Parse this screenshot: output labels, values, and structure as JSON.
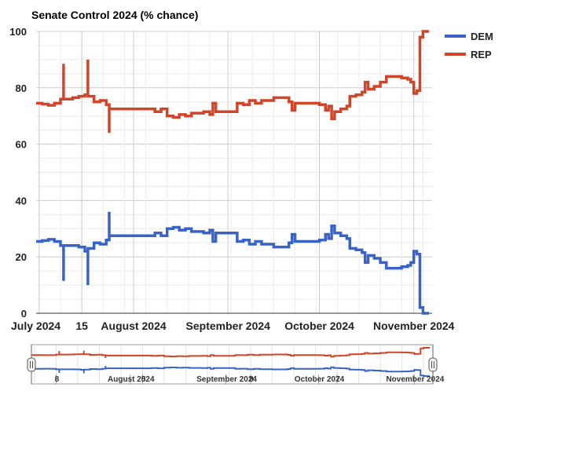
{
  "chart_data": {
    "type": "line",
    "title": "Senate Control 2024 (% chance)",
    "xlabel": "",
    "ylabel": "",
    "x_domain": [
      "2024-06-30",
      "2024-11-07"
    ],
    "ylim": [
      0,
      100
    ],
    "y_ticks": [
      0,
      20,
      40,
      60,
      80,
      100
    ],
    "grid": true,
    "legend_position": "right-top",
    "x_ticks": [
      {
        "date": "2024-07-01",
        "label": "July 2024"
      },
      {
        "date": "2024-07-15",
        "label": "15"
      },
      {
        "date": "2024-08-01",
        "label": "August 2024"
      },
      {
        "date": "2024-09-01",
        "label": "September 2024"
      },
      {
        "date": "2024-10-01",
        "label": "October 2024"
      },
      {
        "date": "2024-11-01",
        "label": "November 2024"
      }
    ],
    "navigator_ticks": [
      {
        "date": "2024-07-08",
        "label": "8"
      },
      {
        "date": "2024-08-01",
        "label": "August 2024"
      },
      {
        "date": "2024-08-05",
        "label": "5"
      },
      {
        "date": "2024-09-01",
        "label": "September 2024"
      },
      {
        "date": "2024-09-09",
        "label": "9"
      },
      {
        "date": "2024-10-01",
        "label": "October 2024"
      },
      {
        "date": "2024-10-07",
        "label": "7"
      },
      {
        "date": "2024-11-01",
        "label": "November 2024"
      }
    ],
    "series": [
      {
        "name": "DEM",
        "color": "#3a63c7",
        "points": [
          [
            "2024-06-30",
            25.5
          ],
          [
            "2024-07-02",
            25.8
          ],
          [
            "2024-07-04",
            26.2
          ],
          [
            "2024-07-06",
            25.5
          ],
          [
            "2024-07-08",
            24.0
          ],
          [
            "2024-07-09",
            11.5
          ],
          [
            "2024-07-09",
            24.0
          ],
          [
            "2024-07-12",
            24.0
          ],
          [
            "2024-07-14",
            23.5
          ],
          [
            "2024-07-16",
            22.0
          ],
          [
            "2024-07-17",
            10.0
          ],
          [
            "2024-07-17",
            23.0
          ],
          [
            "2024-07-19",
            25.0
          ],
          [
            "2024-07-21",
            24.5
          ],
          [
            "2024-07-23",
            26.0
          ],
          [
            "2024-07-24",
            36.0
          ],
          [
            "2024-07-24",
            27.5
          ],
          [
            "2024-07-27",
            27.5
          ],
          [
            "2024-08-01",
            27.5
          ],
          [
            "2024-08-06",
            27.5
          ],
          [
            "2024-08-08",
            28.5
          ],
          [
            "2024-08-10",
            27.5
          ],
          [
            "2024-08-12",
            30.0
          ],
          [
            "2024-08-14",
            30.5
          ],
          [
            "2024-08-16",
            29.5
          ],
          [
            "2024-08-18",
            30.0
          ],
          [
            "2024-08-20",
            29.0
          ],
          [
            "2024-08-24",
            28.5
          ],
          [
            "2024-08-26",
            29.5
          ],
          [
            "2024-08-27",
            25.5
          ],
          [
            "2024-08-28",
            28.5
          ],
          [
            "2024-09-01",
            28.5
          ],
          [
            "2024-09-03",
            28.5
          ],
          [
            "2024-09-04",
            25.5
          ],
          [
            "2024-09-06",
            26.0
          ],
          [
            "2024-09-08",
            24.5
          ],
          [
            "2024-09-10",
            25.5
          ],
          [
            "2024-09-12",
            24.5
          ],
          [
            "2024-09-15",
            24.5
          ],
          [
            "2024-09-16",
            23.5
          ],
          [
            "2024-09-20",
            23.5
          ],
          [
            "2024-09-21",
            25.0
          ],
          [
            "2024-09-22",
            26.0
          ],
          [
            "2024-09-22",
            28.0
          ],
          [
            "2024-09-23",
            25.5
          ],
          [
            "2024-09-27",
            25.5
          ],
          [
            "2024-09-30",
            25.5
          ],
          [
            "2024-10-01",
            26.0
          ],
          [
            "2024-10-03",
            28.0
          ],
          [
            "2024-10-04",
            26.5
          ],
          [
            "2024-10-05",
            31.0
          ],
          [
            "2024-10-06",
            28.5
          ],
          [
            "2024-10-08",
            27.5
          ],
          [
            "2024-10-10",
            26.5
          ],
          [
            "2024-10-11",
            23.0
          ],
          [
            "2024-10-13",
            22.5
          ],
          [
            "2024-10-15",
            21.5
          ],
          [
            "2024-10-16",
            18.0
          ],
          [
            "2024-10-17",
            20.5
          ],
          [
            "2024-10-19",
            19.5
          ],
          [
            "2024-10-21",
            18.0
          ],
          [
            "2024-10-23",
            16.0
          ],
          [
            "2024-10-26",
            16.0
          ],
          [
            "2024-10-28",
            16.5
          ],
          [
            "2024-10-30",
            17.0
          ],
          [
            "2024-10-31",
            18.0
          ],
          [
            "2024-11-01",
            22.0
          ],
          [
            "2024-11-02",
            21.0
          ],
          [
            "2024-11-03",
            18.0
          ],
          [
            "2024-11-03",
            2.0
          ],
          [
            "2024-11-04",
            0.0
          ],
          [
            "2024-11-06",
            0.0
          ]
        ]
      },
      {
        "name": "REP",
        "color": "#d1452a",
        "points": [
          [
            "2024-06-30",
            74.5
          ],
          [
            "2024-07-02",
            74.2
          ],
          [
            "2024-07-04",
            73.8
          ],
          [
            "2024-07-06",
            74.5
          ],
          [
            "2024-07-08",
            76.0
          ],
          [
            "2024-07-09",
            88.5
          ],
          [
            "2024-07-09",
            76.0
          ],
          [
            "2024-07-12",
            76.5
          ],
          [
            "2024-07-14",
            77.0
          ],
          [
            "2024-07-16",
            77.5
          ],
          [
            "2024-07-17",
            90.0
          ],
          [
            "2024-07-17",
            77.0
          ],
          [
            "2024-07-19",
            75.0
          ],
          [
            "2024-07-21",
            75.5
          ],
          [
            "2024-07-23",
            74.0
          ],
          [
            "2024-07-24",
            64.0
          ],
          [
            "2024-07-24",
            72.5
          ],
          [
            "2024-07-27",
            72.5
          ],
          [
            "2024-08-01",
            72.5
          ],
          [
            "2024-08-06",
            72.5
          ],
          [
            "2024-08-08",
            71.5
          ],
          [
            "2024-08-10",
            72.5
          ],
          [
            "2024-08-12",
            70.0
          ],
          [
            "2024-08-14",
            69.5
          ],
          [
            "2024-08-16",
            70.5
          ],
          [
            "2024-08-18",
            70.0
          ],
          [
            "2024-08-20",
            71.0
          ],
          [
            "2024-08-24",
            71.5
          ],
          [
            "2024-08-26",
            70.5
          ],
          [
            "2024-08-27",
            74.5
          ],
          [
            "2024-08-28",
            71.5
          ],
          [
            "2024-09-01",
            71.5
          ],
          [
            "2024-09-03",
            71.5
          ],
          [
            "2024-09-04",
            74.5
          ],
          [
            "2024-09-06",
            74.0
          ],
          [
            "2024-09-08",
            75.5
          ],
          [
            "2024-09-10",
            74.5
          ],
          [
            "2024-09-12",
            75.5
          ],
          [
            "2024-09-15",
            75.5
          ],
          [
            "2024-09-16",
            76.5
          ],
          [
            "2024-09-20",
            76.5
          ],
          [
            "2024-09-21",
            75.0
          ],
          [
            "2024-09-22",
            74.0
          ],
          [
            "2024-09-22",
            72.0
          ],
          [
            "2024-09-23",
            74.5
          ],
          [
            "2024-09-27",
            74.5
          ],
          [
            "2024-09-30",
            74.5
          ],
          [
            "2024-10-01",
            74.0
          ],
          [
            "2024-10-03",
            72.0
          ],
          [
            "2024-10-04",
            73.5
          ],
          [
            "2024-10-05",
            69.0
          ],
          [
            "2024-10-06",
            71.5
          ],
          [
            "2024-10-08",
            72.5
          ],
          [
            "2024-10-10",
            73.5
          ],
          [
            "2024-10-11",
            77.0
          ],
          [
            "2024-10-13",
            77.5
          ],
          [
            "2024-10-15",
            78.5
          ],
          [
            "2024-10-16",
            82.0
          ],
          [
            "2024-10-17",
            79.5
          ],
          [
            "2024-10-19",
            80.5
          ],
          [
            "2024-10-21",
            82.0
          ],
          [
            "2024-10-23",
            84.0
          ],
          [
            "2024-10-26",
            84.0
          ],
          [
            "2024-10-28",
            83.5
          ],
          [
            "2024-10-30",
            83.0
          ],
          [
            "2024-10-31",
            82.0
          ],
          [
            "2024-11-01",
            78.0
          ],
          [
            "2024-11-02",
            79.0
          ],
          [
            "2024-11-03",
            82.0
          ],
          [
            "2024-11-03",
            98.0
          ],
          [
            "2024-11-04",
            100.0
          ],
          [
            "2024-11-06",
            100.0
          ]
        ]
      }
    ]
  }
}
